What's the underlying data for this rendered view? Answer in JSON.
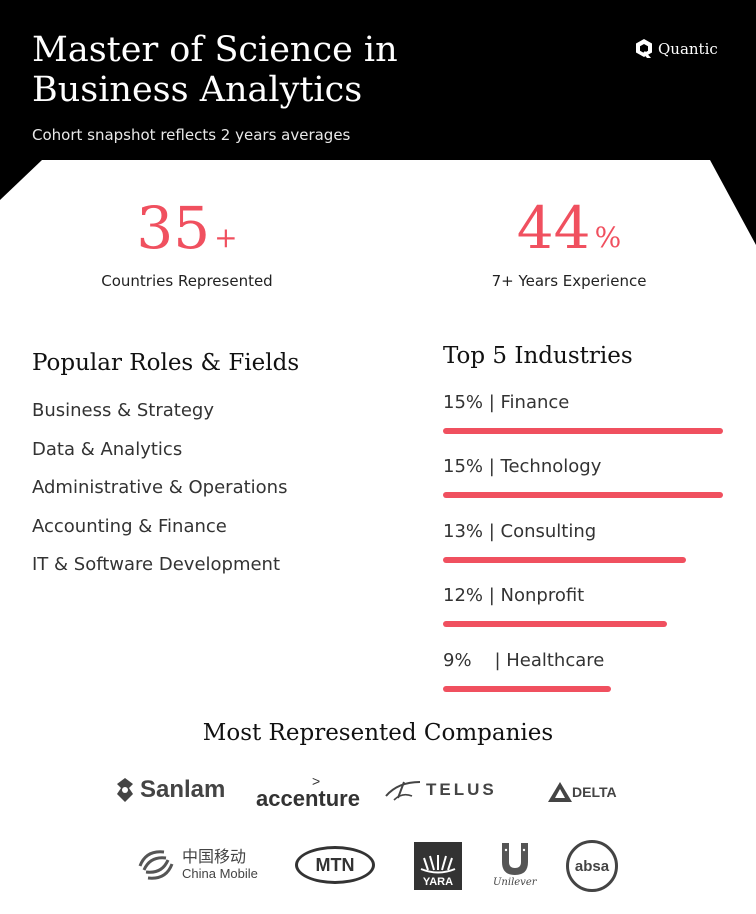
{
  "header": {
    "title": "Master of Science in Business Analytics",
    "subtitle": "Cohort snapshot reflects 2 years averages",
    "brand": "Quantic"
  },
  "stats": [
    {
      "value": "35",
      "suffix": "+",
      "label": "Countries Represented"
    },
    {
      "value": "44",
      "suffix": "%",
      "label": "7+ Years Experience"
    }
  ],
  "roles": {
    "title": "Popular Roles & Fields",
    "items": [
      "Business & Strategy",
      "Data & Analytics",
      "Administrative & Operations",
      "Accounting & Finance",
      "IT & Software Development"
    ]
  },
  "industries": {
    "title": "Top 5 Industries",
    "items": [
      {
        "label": "15% | Finance",
        "percent": 15
      },
      {
        "label": "15% | Technology",
        "percent": 15
      },
      {
        "label": "13% | Consulting",
        "percent": 13
      },
      {
        "label": "12% | Nonprofit",
        "percent": 12
      },
      {
        "label": "9%    | Healthcare",
        "percent": 9
      }
    ]
  },
  "companies": {
    "title": "Most Represented Companies",
    "logos": {
      "sanlam": "Sanlam",
      "accenture": "accenture",
      "telus": "TELUS",
      "delta": "DELTA",
      "china_mobile_cn": "中国移动",
      "china_mobile_en": "China Mobile",
      "mtn": "MTN",
      "yara": "YARA",
      "unilever": "Unilever",
      "absa": "absa"
    }
  },
  "colors": {
    "accent": "#f0505f",
    "header_bg": "#000000"
  }
}
